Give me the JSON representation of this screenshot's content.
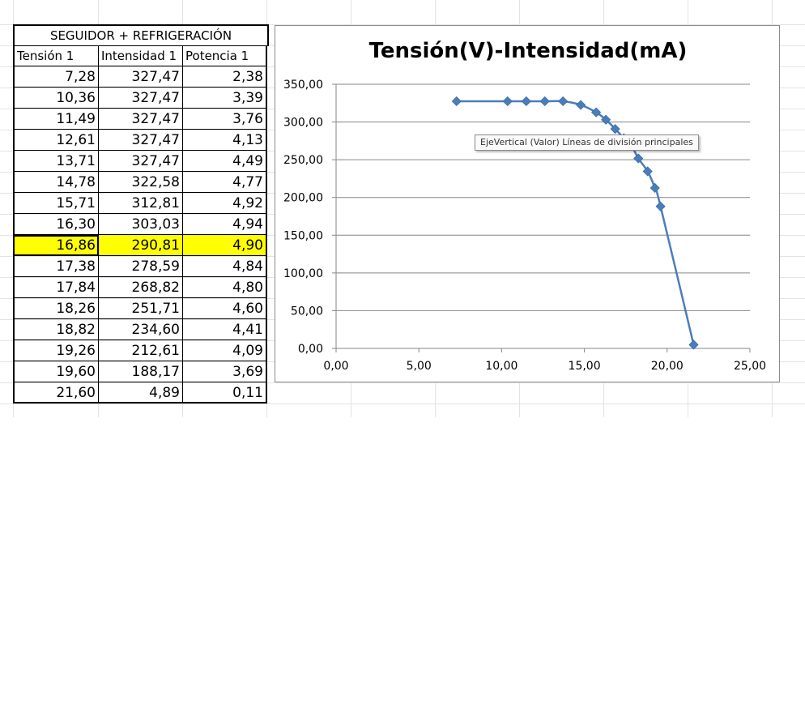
{
  "sheet": {
    "table_title": "SEGUIDOR + REFRIGERACIÓN",
    "headers": [
      "Tensión 1",
      "Intensidad 1",
      "Potencia 1"
    ],
    "rows": [
      [
        "7,28",
        "327,47",
        "2,38"
      ],
      [
        "10,36",
        "327,47",
        "3,39"
      ],
      [
        "11,49",
        "327,47",
        "3,76"
      ],
      [
        "12,61",
        "327,47",
        "4,13"
      ],
      [
        "13,71",
        "327,47",
        "4,49"
      ],
      [
        "14,78",
        "322,58",
        "4,77"
      ],
      [
        "15,71",
        "312,81",
        "4,92"
      ],
      [
        "16,30",
        "303,03",
        "4,94"
      ],
      [
        "16,86",
        "290,81",
        "4,90"
      ],
      [
        "17,38",
        "278,59",
        "4,84"
      ],
      [
        "17,84",
        "268,82",
        "4,80"
      ],
      [
        "18,26",
        "251,71",
        "4,60"
      ],
      [
        "18,82",
        "234,60",
        "4,41"
      ],
      [
        "19,26",
        "212,61",
        "4,09"
      ],
      [
        "19,60",
        "188,17",
        "3,69"
      ],
      [
        "21,60",
        "4,89",
        "0,11"
      ]
    ],
    "highlighted_row": 8,
    "highlight_color": "#ffff00"
  },
  "chart_data": {
    "type": "scatter",
    "title": "Tensión(V)-Intensidad(mA)",
    "xlabel": "",
    "ylabel": "",
    "x": [
      7.28,
      10.36,
      11.49,
      12.61,
      13.71,
      14.78,
      15.71,
      16.3,
      16.86,
      17.38,
      17.84,
      18.26,
      18.82,
      19.26,
      19.6,
      21.6
    ],
    "y": [
      327.47,
      327.47,
      327.47,
      327.47,
      327.47,
      322.58,
      312.81,
      303.03,
      290.81,
      278.59,
      268.82,
      251.71,
      234.6,
      212.61,
      188.17,
      4.89
    ],
    "xlim": [
      0,
      25
    ],
    "ylim": [
      0,
      350
    ],
    "x_tick_labels": [
      "0,00",
      "5,00",
      "10,00",
      "15,00",
      "20,00",
      "25,00"
    ],
    "y_tick_labels": [
      "0,00",
      "50,00",
      "100,00",
      "150,00",
      "200,00",
      "250,00",
      "300,00",
      "350,00"
    ],
    "grid": "horizontal major",
    "legend": "none",
    "series_color": "#4a7ebb",
    "marker": "diamond",
    "line": "smooth"
  },
  "tooltip": {
    "text": "EjeVertical (Valor)  Líneas de división principales"
  }
}
